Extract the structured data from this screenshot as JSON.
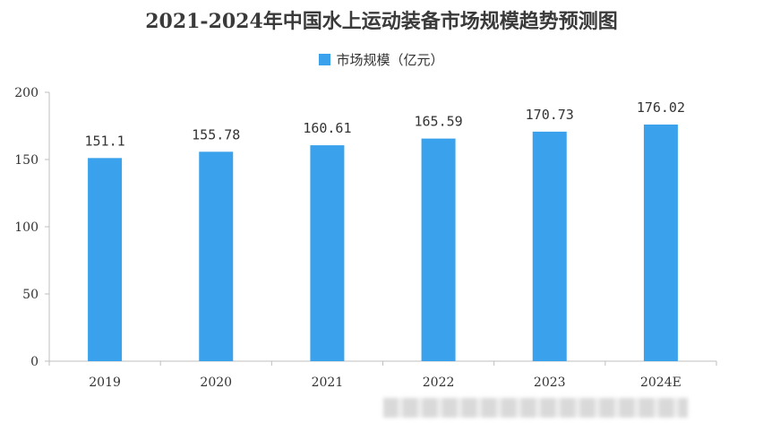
{
  "chart_data": {
    "type": "bar",
    "title": "2021-2024年中国水上运动装备市场规模趋势预测图",
    "categories": [
      "2019",
      "2020",
      "2021",
      "2022",
      "2023",
      "2024E"
    ],
    "series": [
      {
        "name": "市场规模（亿元）",
        "values": [
          151.1,
          155.78,
          160.61,
          165.59,
          170.73,
          176.02
        ]
      }
    ],
    "data_labels": [
      "151.1",
      "155.78",
      "160.61",
      "165.59",
      "170.73",
      "176.02"
    ],
    "ylim": [
      0,
      200
    ],
    "yticks": [
      0,
      50,
      100,
      150,
      200
    ],
    "legend_position": "top-center",
    "grid": false,
    "colors": {
      "bar": "#3aa2ec",
      "axis": "#bfbfbf",
      "text": "#333333"
    }
  }
}
